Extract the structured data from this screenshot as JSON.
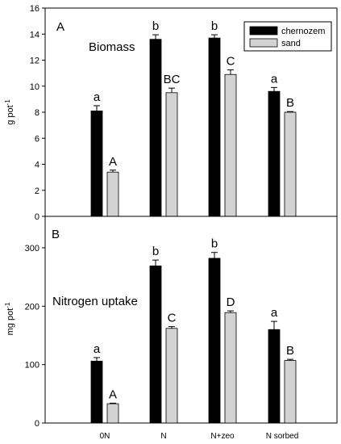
{
  "chart_data": [
    {
      "type": "bar",
      "panel": "A",
      "title": "Biomass",
      "xlabel": "",
      "ylabel": "g pot",
      "ylabel_exp": "-1",
      "ylim": [
        0,
        16
      ],
      "yticks": [
        0,
        2,
        4,
        6,
        8,
        10,
        12,
        14,
        16
      ],
      "categories": [
        "0N",
        "N",
        "N+zeo",
        "N sorbed"
      ],
      "series": [
        {
          "name": "chernozem",
          "color": "#000000",
          "values": [
            8.1,
            13.6,
            13.7,
            9.6
          ],
          "errors": [
            0.4,
            0.35,
            0.25,
            0.3
          ],
          "letters": [
            "a",
            "b",
            "b",
            "a"
          ]
        },
        {
          "name": "sand",
          "color": "#d3d3d3",
          "values": [
            3.4,
            9.5,
            10.9,
            8.0
          ],
          "errors": [
            0.15,
            0.35,
            0.35,
            0.05
          ],
          "letters": [
            "A",
            "BC",
            "C",
            "B"
          ]
        }
      ],
      "legend": "top-right"
    },
    {
      "type": "bar",
      "panel": "B",
      "title": "Nitrogen uptake",
      "xlabel": "",
      "ylabel": "mg pot",
      "ylabel_exp": "-1",
      "ylim": [
        0,
        340
      ],
      "yticks": [
        0,
        100,
        200,
        300
      ],
      "categories": [
        "0N",
        "N",
        "N+zeo",
        "N sorbed"
      ],
      "series": [
        {
          "name": "chernozem",
          "color": "#000000",
          "values": [
            106,
            269,
            282,
            160
          ],
          "errors": [
            6,
            10,
            10,
            14
          ],
          "letters": [
            "a",
            "b",
            "b",
            "a"
          ]
        },
        {
          "name": "sand",
          "color": "#d3d3d3",
          "values": [
            33,
            162,
            189,
            107
          ],
          "errors": [
            1,
            3,
            3,
            2
          ],
          "letters": [
            "A",
            "C",
            "D",
            "B"
          ]
        }
      ]
    }
  ]
}
